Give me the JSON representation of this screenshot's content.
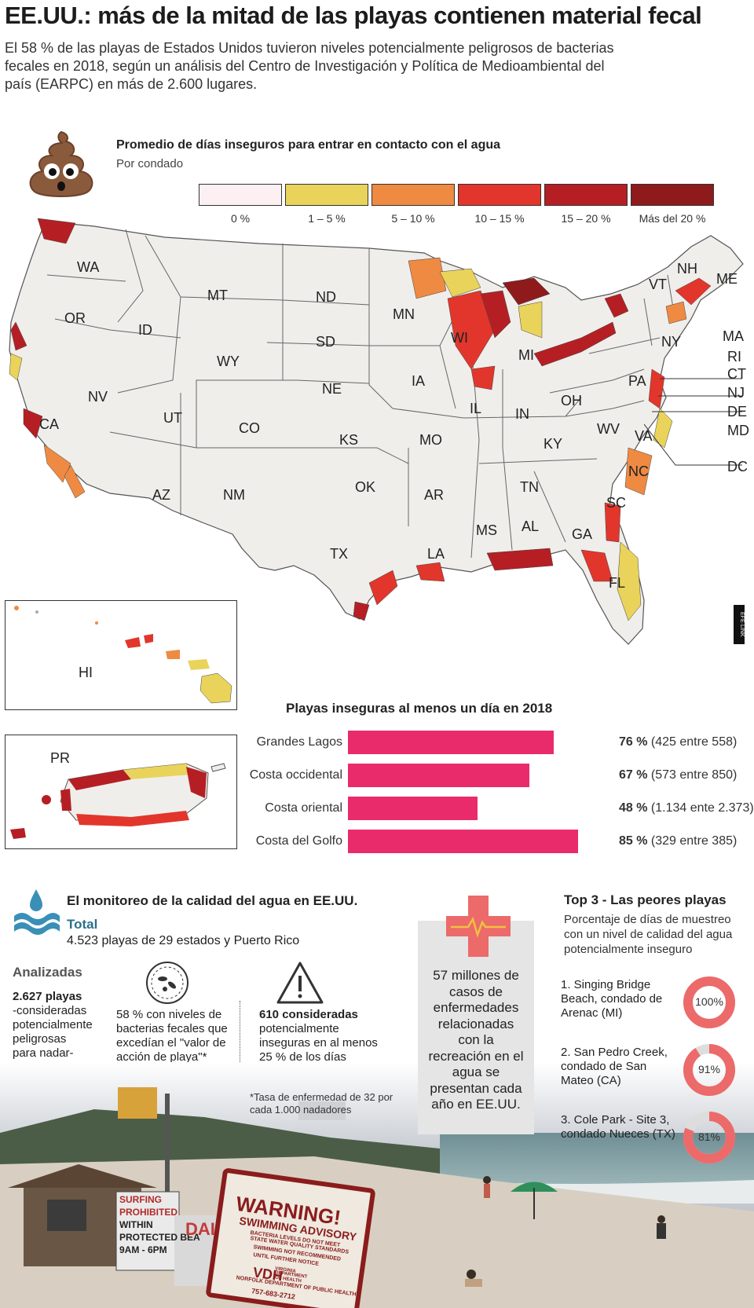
{
  "header": {
    "title": "EE.UU.: más de la mitad de las playas contienen material fecal",
    "intro": "El 58 % de las playas de Estados Unidos tuvieron niveles potencialmente peligrosos de bacterias fecales en 2018, según un análisis del Centro de Investigación y Política de Medioambiental del país (EARPC) en más de 2.600 lugares."
  },
  "legend": {
    "title": "Promedio de días inseguros para entrar en contacto con el agua",
    "subtitle": "Por condado",
    "icon": "poop-emoji-icon",
    "items": [
      {
        "label": "0 %",
        "color": "#fcf0f3"
      },
      {
        "label": "1 – 5 %",
        "color": "#e9d35b"
      },
      {
        "label": "5 – 10 %",
        "color": "#ef8a43"
      },
      {
        "label": "10 – 15 %",
        "color": "#e2362c"
      },
      {
        "label": "15 – 20 %",
        "color": "#b51f24"
      },
      {
        "label": "Más del 20 %",
        "color": "#8f1a1c"
      }
    ]
  },
  "map": {
    "states": [
      "WA",
      "OR",
      "CA",
      "NV",
      "ID",
      "MT",
      "WY",
      "UT",
      "AZ",
      "NM",
      "CO",
      "ND",
      "SD",
      "NE",
      "KS",
      "OK",
      "TX",
      "MN",
      "IA",
      "MO",
      "AR",
      "LA",
      "WI",
      "IL",
      "MI",
      "IN",
      "OH",
      "KY",
      "TN",
      "MS",
      "AL",
      "GA",
      "FL",
      "SC",
      "NC",
      "VA",
      "WV",
      "PA",
      "NY",
      "VT",
      "NH",
      "ME",
      "MA",
      "RI",
      "CT",
      "NJ",
      "DE",
      "MD",
      "DC",
      "HI",
      "PR"
    ]
  },
  "credit": "EFE·LINK",
  "chart_data": {
    "type": "bar",
    "title": "Playas inseguras al menos un día en 2018",
    "categories": [
      "Grandes Lagos",
      "Costa occidental",
      "Costa oriental",
      "Costa del Golfo"
    ],
    "values": [
      76,
      67,
      48,
      85
    ],
    "detail": [
      "(425 entre 558)",
      "(573 entre 850)",
      "(1.134 ente 2.373)",
      "(329 entre 385)"
    ],
    "unit": "%",
    "color": "#ea2b6b"
  },
  "monitoring": {
    "title": "El monitoreo de la calidad del agua en EE.UU.",
    "total_label": "Total",
    "total_text": "4.523 playas de 29 estados y Puerto Rico",
    "analyzed_label": "Analizadas",
    "block1": [
      "2.627 playas",
      "-consideradas",
      "potencialmente",
      "peligrosas",
      "para nadar-"
    ],
    "block2": [
      "58 % con niveles de",
      "bacterias fecales que",
      "excedían el \"valor de",
      "acción de playa\"*"
    ],
    "block3": [
      "610 consideradas",
      "potencialmente",
      "inseguras en al menos",
      "25 % de los días"
    ],
    "note": "*Tasa de enfermedad de 32 por cada 1.000 nadadores"
  },
  "cases": {
    "lines": [
      "57 millones de",
      "casos de",
      "enfermedades",
      "relacionadas",
      "con la",
      "recreación en el",
      "agua se",
      "presentan cada",
      "año en EE.UU."
    ]
  },
  "top3": {
    "title": "Top 3 - Las peores playas",
    "subtitle": "Porcentaje de días de muestreo con un nivel de calidad del agua potencialmente inseguro",
    "items": [
      {
        "name": "1. Singing Bridge Beach, condado de Arenac (MI)",
        "value": 100,
        "label": "100%"
      },
      {
        "name": "2. San Pedro Creek, condado de San Mateo (CA)",
        "value": 91,
        "label": "91%"
      },
      {
        "name": "3. Cole Park - Site 3, condado Nueces (TX)",
        "value": 81,
        "label": "81%"
      }
    ],
    "color": "#ec6a6a"
  },
  "photo": {
    "sign1": [
      "SURFING",
      "PROHIBITED",
      "WITHIN",
      "PROTECTED BEA",
      "9AM - 6PM"
    ],
    "sign2": [
      "WARNING!",
      "SWIMMING ADVISORY",
      "BACTERIA LEVELS DO NOT MEET",
      "STATE WATER QUALITY STANDARDS",
      "SWIMMING NOT RECOMMENDED",
      "UNTIL FURTHER NOTICE",
      "VDH",
      "VIRGINIA",
      "DEPARTMENT",
      "OF HEALTH",
      "NORFOLK DEPARTMENT OF PUBLIC HEALTH",
      "757-683-2712"
    ],
    "sign3": "DAI"
  }
}
